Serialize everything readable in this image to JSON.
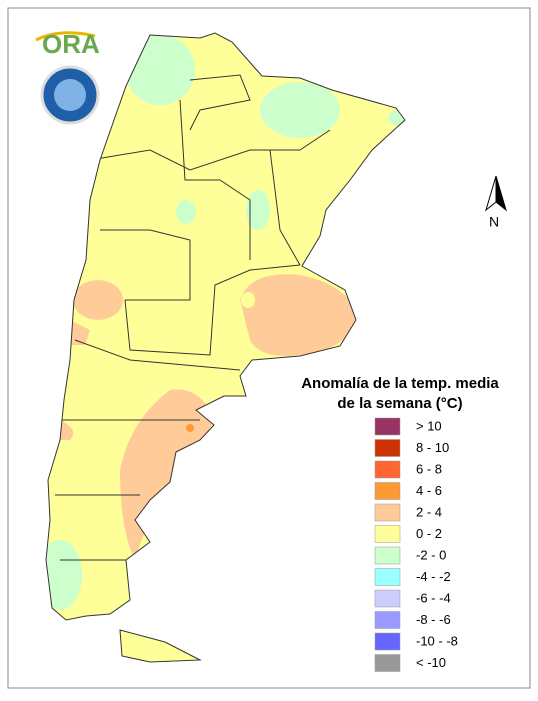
{
  "header": {
    "logo": "ORA"
  },
  "compass": {
    "label": "N"
  },
  "legend": {
    "title_lines": [
      "Anomalía de la temp. media",
      "de la semana (°C)"
    ],
    "items": [
      {
        "label": "> 10",
        "color": "#993366"
      },
      {
        "label": "8 - 10",
        "color": "#cc3300"
      },
      {
        "label": "6 - 8",
        "color": "#ff6633"
      },
      {
        "label": "4 - 6",
        "color": "#ff9933"
      },
      {
        "label": "2 - 4",
        "color": "#ffcc99"
      },
      {
        "label": "0 - 2",
        "color": "#ffff99"
      },
      {
        "label": "-2 - 0",
        "color": "#ccffcc"
      },
      {
        "label": "-4 - -2",
        "color": "#99ffff"
      },
      {
        "label": "-6 - -4",
        "color": "#ccccff"
      },
      {
        "label": "-8 - -6",
        "color": "#9999ff"
      },
      {
        "label": "-10 - -8",
        "color": "#6666ff"
      },
      {
        "label": "< -10",
        "color": "#999999"
      }
    ]
  }
}
